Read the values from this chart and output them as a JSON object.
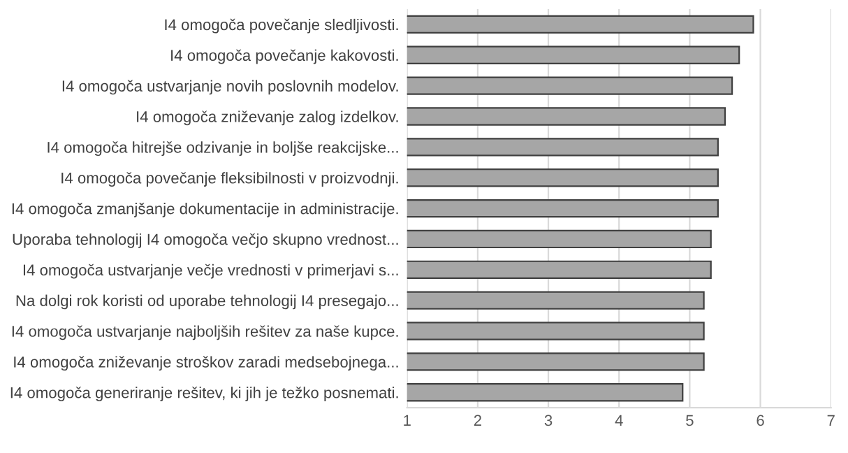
{
  "chart_data": {
    "type": "bar",
    "orientation": "horizontal",
    "categories": [
      "I4 omogoča povečanje sledljivosti.",
      "I4 omogoča povečanje kakovosti.",
      "I4 omogoča ustvarjanje novih poslovnih modelov.",
      "I4 omogoča zniževanje zalog izdelkov.",
      "I4 omogoča hitrejše odzivanje in boljše reakcijske...",
      "I4 omogoča povečanje fleksibilnosti v proizvodnji.",
      "I4 omogoča zmanjšanje dokumentacije in administracije.",
      "Uporaba tehnologij I4 omogoča večjo skupno vrednost...",
      "I4 omogoča ustvarjanje večje vrednosti v primerjavi s...",
      "Na dolgi rok koristi od uporabe tehnologij I4 presegajo...",
      "I4 omogoča ustvarjanje najboljših rešitev za naše kupce.",
      "I4 omogoča zniževanje stroškov zaradi medsebojnega...",
      "I4 omogoča generiranje rešitev, ki jih je težko posnemati."
    ],
    "values": [
      5.9,
      5.7,
      5.6,
      5.5,
      5.4,
      5.4,
      5.4,
      5.3,
      5.3,
      5.2,
      5.2,
      5.2,
      4.9
    ],
    "color": "#a6a6a6",
    "xlim": [
      1,
      7
    ],
    "xticks": [
      1,
      2,
      3,
      4,
      5,
      6,
      7
    ],
    "grid": "x"
  }
}
